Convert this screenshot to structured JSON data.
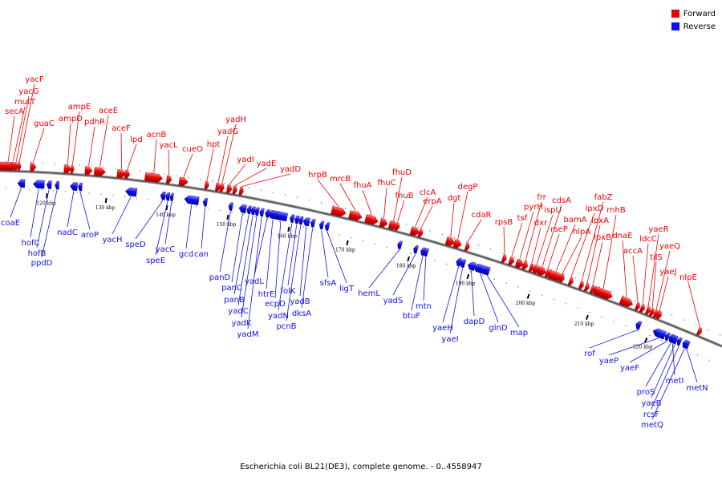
{
  "legend": {
    "forward_label": "Forward",
    "reverse_label": "Reverse",
    "forward_color": "#ee0000",
    "reverse_color": "#1111ee"
  },
  "caption": "Escherichia coli BL21(DE3), complete genome. - 0..4558947",
  "ticks": [
    "120 kbp",
    "130 kbp",
    "140 kbp",
    "150 kbp",
    "160 kbp",
    "170 kbp",
    "180 kbp",
    "190 kbp",
    "200 kbp",
    "210 kbp",
    "220 kbp"
  ],
  "forward_genes": [
    "secA",
    "mutT",
    "yacG",
    "yacF",
    "guaC",
    "ampD",
    "ampE",
    "pdhR",
    "aceE",
    "aceF",
    "lpd",
    "acnB",
    "yacL",
    "cueO",
    "hpt",
    "yadG",
    "yadH",
    "yadI",
    "yadE",
    "yadD",
    "hrpB",
    "mrcB",
    "fhuA",
    "fhuC",
    "fhuD",
    "fhuB",
    "clcA",
    "erpA",
    "dgt",
    "degP",
    "cdaR",
    "rpsB",
    "tsf",
    "pyrH",
    "frr",
    "dxr",
    "ispU",
    "cdsA",
    "rseP",
    "bamA",
    "hlpA",
    "lpxD",
    "fabZ",
    "lpxA",
    "lpxB",
    "rnhB",
    "dnaE",
    "accA",
    "ldcC",
    "yaeR",
    "tilS",
    "yaeQ",
    "yaeJ",
    "nlpE"
  ],
  "reverse_genes": [
    "coaE",
    "hofC",
    "hofB",
    "ppdD",
    "nadC",
    "aroP",
    "yacH",
    "speD",
    "speE",
    "yacC",
    "gcd",
    "can",
    "panD",
    "panC",
    "panB",
    "yadC",
    "yadK",
    "yadM",
    "yadL",
    "htrE",
    "ecpD",
    "yadN",
    "folK",
    "pcnB",
    "yadB",
    "dksA",
    "sfsA",
    "ligT",
    "hemL",
    "yadS",
    "btuF",
    "mtn",
    "yaeH",
    "yaeI",
    "dapD",
    "glnD",
    "map",
    "rof",
    "yaeP",
    "yaeF",
    "proS",
    "yaeB",
    "rcsF",
    "metQ",
    "metI",
    "metN"
  ]
}
